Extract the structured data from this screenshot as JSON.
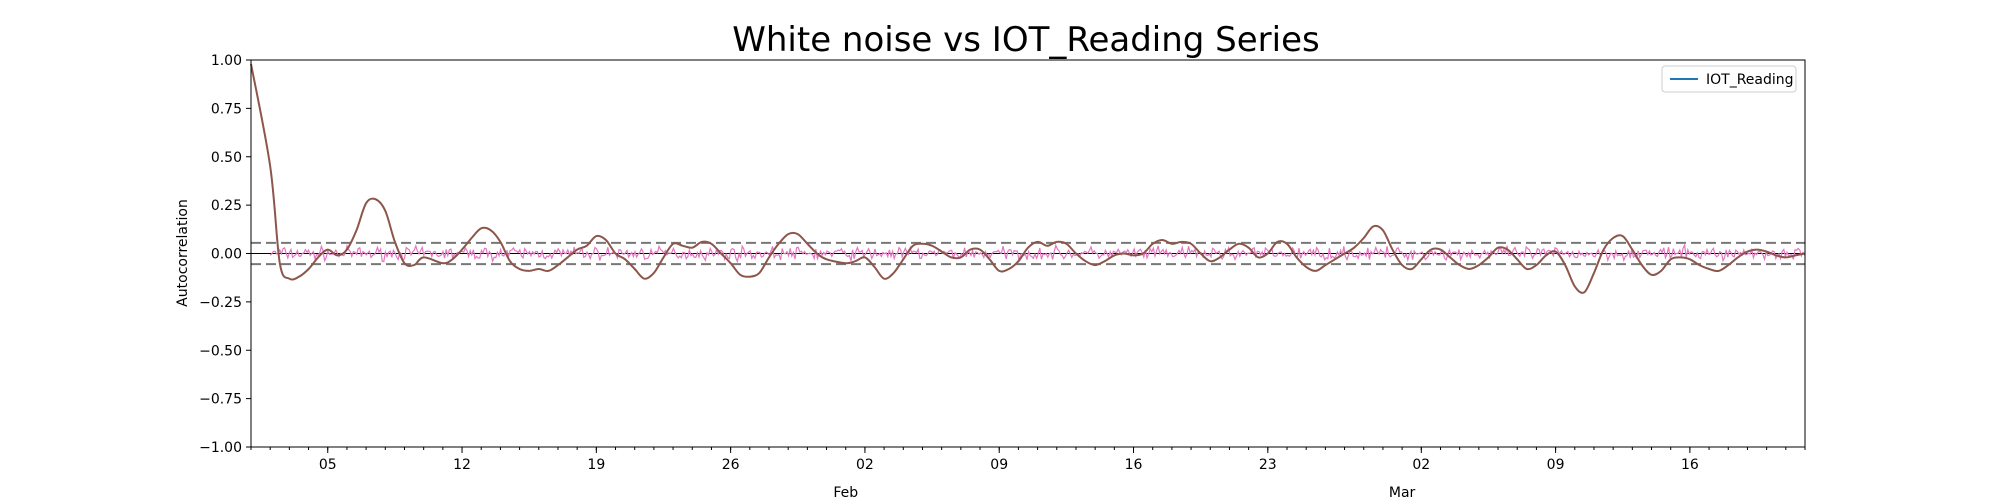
{
  "chart_data": {
    "type": "line",
    "title": "White noise vs IOT_Reading Series",
    "xlabel": "",
    "ylabel": "Autocorrelation",
    "ylim": [
      -1.0,
      1.0
    ],
    "yticks": [
      "1.00",
      "0.75",
      "0.50",
      "0.25",
      "0.00",
      "−0.25",
      "−0.50",
      "−0.75",
      "−1.00"
    ],
    "xlim": [
      "2024-01-01",
      "2024-03-22"
    ],
    "xticks": [
      {
        "date": "2024-01-05",
        "label": "05"
      },
      {
        "date": "2024-01-12",
        "label": "12"
      },
      {
        "date": "2024-01-19",
        "label": "19"
      },
      {
        "date": "2024-01-26",
        "label": "26"
      },
      {
        "date": "2024-02-02",
        "label": "02"
      },
      {
        "date": "2024-02-09",
        "label": "09"
      },
      {
        "date": "2024-02-16",
        "label": "16"
      },
      {
        "date": "2024-02-23",
        "label": "23"
      },
      {
        "date": "2024-03-02",
        "label": "02"
      },
      {
        "date": "2024-03-09",
        "label": "09"
      },
      {
        "date": "2024-03-16",
        "label": "16"
      }
    ],
    "month_labels": [
      {
        "date": "2024-02-01",
        "label": "Feb"
      },
      {
        "date": "2024-03-01",
        "label": "Mar"
      }
    ],
    "confidence_band": [
      -0.055,
      0.055
    ],
    "legend": {
      "placement": "upper-right",
      "entries": [
        "IOT_Reading"
      ]
    },
    "grid": false,
    "series": [
      {
        "name": "IOT_Reading",
        "color": "#8c564b",
        "points": [
          [
            "2024-01-01",
            0.98
          ],
          [
            "2024-01-02",
            0.45
          ],
          [
            "2024-01-02 12:00",
            -0.05
          ],
          [
            "2024-01-03",
            -0.13
          ],
          [
            "2024-01-03 12:00",
            -0.12
          ],
          [
            "2024-01-04",
            -0.08
          ],
          [
            "2024-01-04 12:00",
            -0.02
          ],
          [
            "2024-01-05",
            0.02
          ],
          [
            "2024-01-05 12:00",
            -0.01
          ],
          [
            "2024-01-06",
            0.02
          ],
          [
            "2024-01-06 12:00",
            0.12
          ],
          [
            "2024-01-07",
            0.26
          ],
          [
            "2024-01-07 12:00",
            0.28
          ],
          [
            "2024-01-08",
            0.22
          ],
          [
            "2024-01-08 12:00",
            0.06
          ],
          [
            "2024-01-09",
            -0.05
          ],
          [
            "2024-01-09 12:00",
            -0.06
          ],
          [
            "2024-01-10",
            -0.02
          ],
          [
            "2024-01-11",
            -0.05
          ],
          [
            "2024-01-11 12:00",
            -0.03
          ],
          [
            "2024-01-12",
            0.02
          ],
          [
            "2024-01-12 12:00",
            0.08
          ],
          [
            "2024-01-13",
            0.13
          ],
          [
            "2024-01-13 12:00",
            0.12
          ],
          [
            "2024-01-14",
            0.06
          ],
          [
            "2024-01-14 12:00",
            -0.04
          ],
          [
            "2024-01-15",
            -0.08
          ],
          [
            "2024-01-15 12:00",
            -0.09
          ],
          [
            "2024-01-16",
            -0.08
          ],
          [
            "2024-01-16 12:00",
            -0.09
          ],
          [
            "2024-01-17",
            -0.06
          ],
          [
            "2024-01-17 12:00",
            -0.02
          ],
          [
            "2024-01-18",
            0.02
          ],
          [
            "2024-01-18 12:00",
            0.04
          ],
          [
            "2024-01-19",
            0.09
          ],
          [
            "2024-01-19 12:00",
            0.07
          ],
          [
            "2024-01-20",
            0.0
          ],
          [
            "2024-01-20 12:00",
            -0.03
          ],
          [
            "2024-01-21",
            -0.08
          ],
          [
            "2024-01-21 12:00",
            -0.13
          ],
          [
            "2024-01-22",
            -0.1
          ],
          [
            "2024-01-22 12:00",
            -0.02
          ],
          [
            "2024-01-23",
            0.05
          ],
          [
            "2024-01-23 12:00",
            0.04
          ],
          [
            "2024-01-24",
            0.03
          ],
          [
            "2024-01-24 12:00",
            0.06
          ],
          [
            "2024-01-25",
            0.05
          ],
          [
            "2024-01-25 12:00",
            0.0
          ],
          [
            "2024-01-26",
            -0.05
          ],
          [
            "2024-01-26 12:00",
            -0.11
          ],
          [
            "2024-01-27",
            -0.12
          ],
          [
            "2024-01-27 12:00",
            -0.1
          ],
          [
            "2024-01-28",
            -0.02
          ],
          [
            "2024-01-28 12:00",
            0.05
          ],
          [
            "2024-01-29",
            0.1
          ],
          [
            "2024-01-29 12:00",
            0.1
          ],
          [
            "2024-01-30",
            0.05
          ],
          [
            "2024-01-30 12:00",
            0.0
          ],
          [
            "2024-01-31",
            -0.03
          ],
          [
            "2024-02-01",
            -0.05
          ],
          [
            "2024-02-01 12:00",
            -0.04
          ],
          [
            "2024-02-02",
            -0.02
          ],
          [
            "2024-02-02 12:00",
            -0.07
          ],
          [
            "2024-02-03",
            -0.13
          ],
          [
            "2024-02-03 12:00",
            -0.1
          ],
          [
            "2024-02-04",
            -0.03
          ],
          [
            "2024-02-04 12:00",
            0.04
          ],
          [
            "2024-02-05",
            0.05
          ],
          [
            "2024-02-05 12:00",
            0.04
          ],
          [
            "2024-02-06",
            0.01
          ],
          [
            "2024-02-06 12:00",
            -0.02
          ],
          [
            "2024-02-07",
            -0.02
          ],
          [
            "2024-02-07 12:00",
            0.02
          ],
          [
            "2024-02-08",
            0.02
          ],
          [
            "2024-02-08 12:00",
            -0.03
          ],
          [
            "2024-02-09",
            -0.09
          ],
          [
            "2024-02-09 12:00",
            -0.08
          ],
          [
            "2024-02-10",
            -0.04
          ],
          [
            "2024-02-10 12:00",
            0.03
          ],
          [
            "2024-02-11",
            0.06
          ],
          [
            "2024-02-11 12:00",
            0.04
          ],
          [
            "2024-02-12",
            0.06
          ],
          [
            "2024-02-12 12:00",
            0.05
          ],
          [
            "2024-02-13",
            0.0
          ],
          [
            "2024-02-13 12:00",
            -0.04
          ],
          [
            "2024-02-14",
            -0.06
          ],
          [
            "2024-02-14 12:00",
            -0.04
          ],
          [
            "2024-02-15",
            -0.01
          ],
          [
            "2024-02-15 12:00",
            0.0
          ],
          [
            "2024-02-16",
            -0.01
          ],
          [
            "2024-02-16 12:00",
            0.0
          ],
          [
            "2024-02-17",
            0.05
          ],
          [
            "2024-02-17 12:00",
            0.07
          ],
          [
            "2024-02-18",
            0.05
          ],
          [
            "2024-02-18 12:00",
            0.06
          ],
          [
            "2024-02-19",
            0.05
          ],
          [
            "2024-02-19 12:00",
            0.0
          ],
          [
            "2024-02-20",
            -0.04
          ],
          [
            "2024-02-20 12:00",
            -0.02
          ],
          [
            "2024-02-21",
            0.02
          ],
          [
            "2024-02-21 12:00",
            0.05
          ],
          [
            "2024-02-22",
            0.03
          ],
          [
            "2024-02-22 12:00",
            -0.02
          ],
          [
            "2024-02-23",
            0.0
          ],
          [
            "2024-02-23 12:00",
            0.06
          ],
          [
            "2024-02-24",
            0.05
          ],
          [
            "2024-02-24 12:00",
            -0.02
          ],
          [
            "2024-02-25",
            -0.07
          ],
          [
            "2024-02-25 12:00",
            -0.09
          ],
          [
            "2024-02-26",
            -0.06
          ],
          [
            "2024-02-26 12:00",
            -0.03
          ],
          [
            "2024-02-27",
            0.0
          ],
          [
            "2024-02-27 12:00",
            0.03
          ],
          [
            "2024-02-28",
            0.08
          ],
          [
            "2024-02-28 12:00",
            0.14
          ],
          [
            "2024-02-29",
            0.12
          ],
          [
            "2024-02-29 12:00",
            0.02
          ],
          [
            "2024-03-01",
            -0.06
          ],
          [
            "2024-03-01 12:00",
            -0.08
          ],
          [
            "2024-03-02",
            -0.03
          ],
          [
            "2024-03-02 12:00",
            0.02
          ],
          [
            "2024-03-03",
            0.02
          ],
          [
            "2024-03-03 12:00",
            -0.02
          ],
          [
            "2024-03-04",
            -0.06
          ],
          [
            "2024-03-04 12:00",
            -0.08
          ],
          [
            "2024-03-05",
            -0.06
          ],
          [
            "2024-03-05 12:00",
            -0.02
          ],
          [
            "2024-03-06",
            0.03
          ],
          [
            "2024-03-06 12:00",
            0.02
          ],
          [
            "2024-03-07",
            -0.03
          ],
          [
            "2024-03-07 12:00",
            -0.08
          ],
          [
            "2024-03-08",
            -0.06
          ],
          [
            "2024-03-08 12:00",
            -0.01
          ],
          [
            "2024-03-09",
            0.01
          ],
          [
            "2024-03-09 12:00",
            -0.06
          ],
          [
            "2024-03-10",
            -0.17
          ],
          [
            "2024-03-10 12:00",
            -0.2
          ],
          [
            "2024-03-11",
            -0.1
          ],
          [
            "2024-03-11 12:00",
            0.02
          ],
          [
            "2024-03-12",
            0.08
          ],
          [
            "2024-03-12 12:00",
            0.09
          ],
          [
            "2024-03-13",
            0.02
          ],
          [
            "2024-03-13 12:00",
            -0.06
          ],
          [
            "2024-03-14",
            -0.11
          ],
          [
            "2024-03-14 12:00",
            -0.09
          ],
          [
            "2024-03-15",
            -0.03
          ],
          [
            "2024-03-15 12:00",
            -0.02
          ],
          [
            "2024-03-16",
            -0.03
          ],
          [
            "2024-03-16 12:00",
            -0.06
          ],
          [
            "2024-03-17",
            -0.08
          ],
          [
            "2024-03-17 12:00",
            -0.09
          ],
          [
            "2024-03-18",
            -0.06
          ],
          [
            "2024-03-18 12:00",
            -0.02
          ],
          [
            "2024-03-19",
            0.01
          ],
          [
            "2024-03-19 12:00",
            0.02
          ],
          [
            "2024-03-20",
            0.01
          ],
          [
            "2024-03-20 12:00",
            -0.01
          ],
          [
            "2024-03-21",
            -0.02
          ],
          [
            "2024-03-21 12:00",
            -0.01
          ],
          [
            "2024-03-22",
            0.0
          ]
        ]
      },
      {
        "color": "#e377c2",
        "kind": "white-noise",
        "amplitude": [
          -0.04,
          0.04
        ]
      }
    ]
  }
}
